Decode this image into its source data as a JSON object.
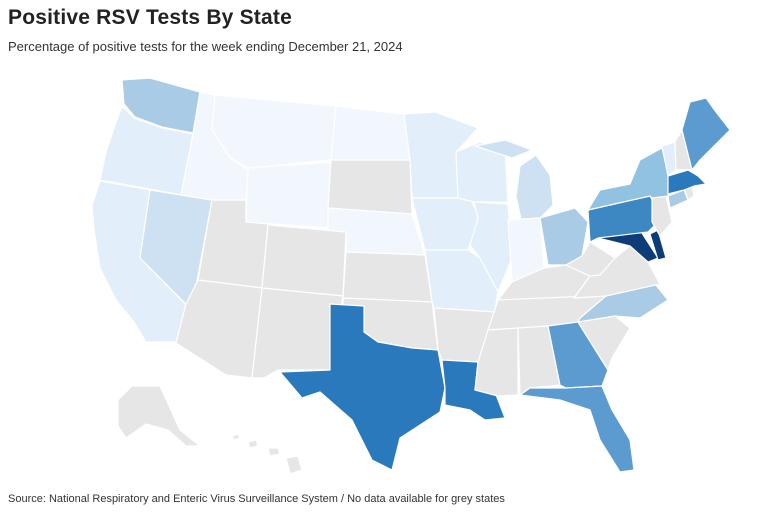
{
  "header": {
    "title": "Positive RSV Tests By State",
    "subtitle": "Percentage of positive tests for the week ending December 21, 2024"
  },
  "footer": {
    "source": "Source: National Respiratory and Enteric Virus Surveillance System / No data available for grey states"
  },
  "colors": {
    "no_data": "#e6e6e6",
    "level_1": "#f2f7fd",
    "level_2": "#e2eefa",
    "level_3": "#cde1f2",
    "level_4": "#a9cbe6",
    "level_5": "#92c2e2",
    "level_6": "#5c9bcf",
    "level_7": "#3d87c3",
    "level_8": "#2b79bd",
    "level_9": "#0d3c78"
  },
  "states": [
    {
      "id": "WA",
      "name": "Washington",
      "level": 4
    },
    {
      "id": "OR",
      "name": "Oregon",
      "level": 2
    },
    {
      "id": "CA",
      "name": "California",
      "level": 2
    },
    {
      "id": "NV",
      "name": "Nevada",
      "level": 3
    },
    {
      "id": "ID",
      "name": "Idaho",
      "level": 1
    },
    {
      "id": "MT",
      "name": "Montana",
      "level": 1
    },
    {
      "id": "WY",
      "name": "Wyoming",
      "level": 1
    },
    {
      "id": "UT",
      "name": "Utah",
      "level": 0
    },
    {
      "id": "AZ",
      "name": "Arizona",
      "level": 0
    },
    {
      "id": "CO",
      "name": "Colorado",
      "level": 0
    },
    {
      "id": "NM",
      "name": "New Mexico",
      "level": 0
    },
    {
      "id": "ND",
      "name": "North Dakota",
      "level": 1
    },
    {
      "id": "SD",
      "name": "South Dakota",
      "level": 0
    },
    {
      "id": "NE",
      "name": "Nebraska",
      "level": 1
    },
    {
      "id": "KS",
      "name": "Kansas",
      "level": 0
    },
    {
      "id": "OK",
      "name": "Oklahoma",
      "level": 0
    },
    {
      "id": "TX",
      "name": "Texas",
      "level": 8
    },
    {
      "id": "MN",
      "name": "Minnesota",
      "level": 2
    },
    {
      "id": "IA",
      "name": "Iowa",
      "level": 2
    },
    {
      "id": "MO",
      "name": "Missouri",
      "level": 2
    },
    {
      "id": "AR",
      "name": "Arkansas",
      "level": 0
    },
    {
      "id": "LA",
      "name": "Louisiana",
      "level": 8
    },
    {
      "id": "WI",
      "name": "Wisconsin",
      "level": 2
    },
    {
      "id": "IL",
      "name": "Illinois",
      "level": 2
    },
    {
      "id": "MI",
      "name": "Michigan",
      "level": 3
    },
    {
      "id": "IN",
      "name": "Indiana",
      "level": 1
    },
    {
      "id": "OH",
      "name": "Ohio",
      "level": 4
    },
    {
      "id": "KY",
      "name": "Kentucky",
      "level": 0
    },
    {
      "id": "TN",
      "name": "Tennessee",
      "level": 0
    },
    {
      "id": "MS",
      "name": "Mississippi",
      "level": 0
    },
    {
      "id": "AL",
      "name": "Alabama",
      "level": 0
    },
    {
      "id": "GA",
      "name": "Georgia",
      "level": 6
    },
    {
      "id": "FL",
      "name": "Florida",
      "level": 6
    },
    {
      "id": "SC",
      "name": "South Carolina",
      "level": 0
    },
    {
      "id": "NC",
      "name": "North Carolina",
      "level": 4
    },
    {
      "id": "VA",
      "name": "Virginia",
      "level": 0
    },
    {
      "id": "WV",
      "name": "West Virginia",
      "level": 0
    },
    {
      "id": "MD",
      "name": "Maryland",
      "level": 9
    },
    {
      "id": "DE",
      "name": "Delaware",
      "level": 9
    },
    {
      "id": "PA",
      "name": "Pennsylvania",
      "level": 7
    },
    {
      "id": "NJ",
      "name": "New Jersey",
      "level": 0
    },
    {
      "id": "NY",
      "name": "New York",
      "level": 5
    },
    {
      "id": "CT",
      "name": "Connecticut",
      "level": 4
    },
    {
      "id": "RI",
      "name": "Rhode Island",
      "level": 0
    },
    {
      "id": "MA",
      "name": "Massachusetts",
      "level": 8
    },
    {
      "id": "VT",
      "name": "Vermont",
      "level": 2
    },
    {
      "id": "NH",
      "name": "New Hampshire",
      "level": 0
    },
    {
      "id": "ME",
      "name": "Maine",
      "level": 6
    },
    {
      "id": "AK",
      "name": "Alaska",
      "level": 0
    },
    {
      "id": "HI",
      "name": "Hawaii",
      "level": 0
    }
  ]
}
